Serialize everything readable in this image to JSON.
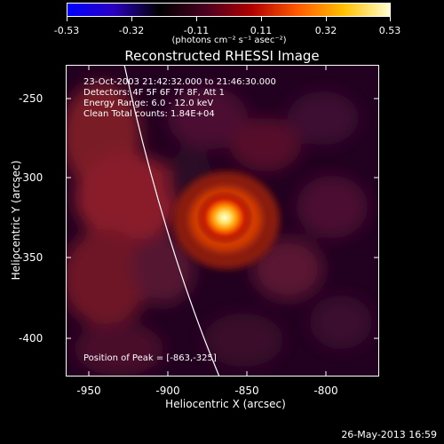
{
  "colorbar": {
    "tick_labels": [
      "-0.53",
      "-0.32",
      "-0.11",
      "0.11",
      "0.32",
      "0.53"
    ],
    "range": [
      -0.53,
      0.53
    ],
    "units": "(photons cm⁻² s⁻¹ asec⁻²)",
    "colors": [
      "#0000ff",
      "#2a00c0",
      "#000000",
      "#4a0020",
      "#b00000",
      "#ff5a00",
      "#ffc000",
      "#ffffd0"
    ]
  },
  "image": {
    "title": "Reconstructed RHESSI Image",
    "info_lines": [
      "23-Oct-2003 21:42:32.000 to 21:46:30.000",
      "Detectors: 4F 5F 6F 7F 8F, Att 1",
      "Energy Range: 6.0 - 12.0 keV",
      "Clean    Total counts: 1.84E+04"
    ],
    "peak_label": "Position of Peak = [-863,-325]",
    "peak": [
      -863,
      -325
    ],
    "x_range": [
      -964,
      -764
    ],
    "y_range": [
      -231,
      -424
    ]
  },
  "axes": {
    "x_label": "Heliocentric X (arcsec)",
    "y_label": "Heliocentric Y (arcsec)",
    "x_ticks": [
      "-950",
      "-900",
      "-850",
      "-800"
    ],
    "y_ticks": [
      "-250",
      "-300",
      "-350",
      "-400"
    ]
  },
  "footer": {
    "datestamp": "26-May-2013 16:59"
  }
}
